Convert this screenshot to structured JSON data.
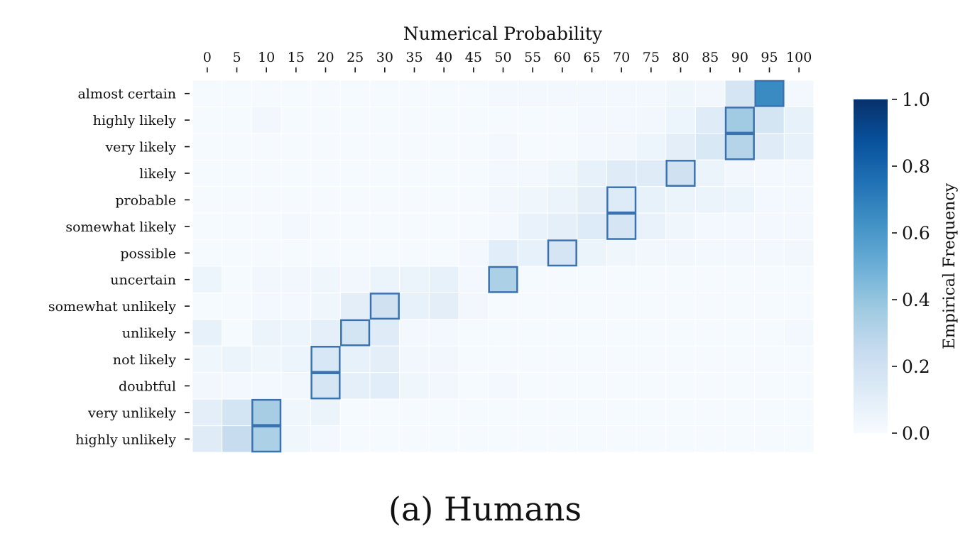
{
  "caption": "(a) Humans",
  "chart_data": {
    "type": "heatmap",
    "title": "",
    "xlabel": "Numerical Probability",
    "x_position": "top",
    "ylabel": "",
    "x": [
      "0",
      "5",
      "10",
      "15",
      "20",
      "25",
      "30",
      "35",
      "40",
      "45",
      "50",
      "55",
      "60",
      "65",
      "70",
      "75",
      "80",
      "85",
      "90",
      "95",
      "100"
    ],
    "y": [
      "almost certain",
      "highly likely",
      "very likely",
      "likely",
      "probable",
      "somewhat likely",
      "possible",
      "uncertain",
      "somewhat unlikely",
      "unlikely",
      "not likely",
      "doubtful",
      "very unlikely",
      "highly unlikely"
    ],
    "values": [
      [
        0.01,
        0.01,
        0.01,
        0.01,
        0.01,
        0.01,
        0.01,
        0.01,
        0.01,
        0.01,
        0.02,
        0.02,
        0.02,
        0.02,
        0.02,
        0.02,
        0.04,
        0.03,
        0.17,
        0.65,
        0.02
      ],
      [
        0.01,
        0.01,
        0.03,
        0.01,
        0.01,
        0.01,
        0.01,
        0.01,
        0.01,
        0.01,
        0.01,
        0.01,
        0.01,
        0.02,
        0.02,
        0.03,
        0.05,
        0.12,
        0.37,
        0.18,
        0.08
      ],
      [
        0.01,
        0.01,
        0.01,
        0.01,
        0.01,
        0.01,
        0.01,
        0.01,
        0.01,
        0.01,
        0.02,
        0.01,
        0.01,
        0.02,
        0.03,
        0.05,
        0.1,
        0.15,
        0.3,
        0.12,
        0.08
      ],
      [
        0.01,
        0.01,
        0.01,
        0.01,
        0.01,
        0.01,
        0.01,
        0.01,
        0.01,
        0.01,
        0.02,
        0.02,
        0.04,
        0.08,
        0.12,
        0.12,
        0.2,
        0.06,
        0.03,
        0.02,
        0.02
      ],
      [
        0.01,
        0.01,
        0.01,
        0.01,
        0.01,
        0.01,
        0.01,
        0.01,
        0.01,
        0.01,
        0.03,
        0.04,
        0.06,
        0.1,
        0.13,
        0.08,
        0.06,
        0.06,
        0.05,
        0.02,
        0.02
      ],
      [
        0.01,
        0.01,
        0.01,
        0.02,
        0.01,
        0.01,
        0.01,
        0.01,
        0.01,
        0.01,
        0.02,
        0.07,
        0.09,
        0.13,
        0.17,
        0.07,
        0.04,
        0.02,
        0.02,
        0.02,
        0.02
      ],
      [
        0.01,
        0.01,
        0.01,
        0.01,
        0.01,
        0.01,
        0.01,
        0.01,
        0.01,
        0.02,
        0.11,
        0.08,
        0.17,
        0.06,
        0.04,
        0.03,
        0.03,
        0.02,
        0.02,
        0.02,
        0.03
      ],
      [
        0.05,
        0.01,
        0.03,
        0.03,
        0.04,
        0.03,
        0.06,
        0.06,
        0.08,
        0.02,
        0.33,
        0.01,
        0.01,
        0.01,
        0.01,
        0.01,
        0.01,
        0.01,
        0.01,
        0.01,
        0.01
      ],
      [
        0.01,
        0.01,
        0.02,
        0.02,
        0.04,
        0.1,
        0.2,
        0.08,
        0.1,
        0.03,
        0.01,
        0.01,
        0.01,
        0.01,
        0.01,
        0.01,
        0.01,
        0.01,
        0.01,
        0.01,
        0.01
      ],
      [
        0.08,
        0.01,
        0.06,
        0.05,
        0.09,
        0.18,
        0.12,
        0.02,
        0.02,
        0.01,
        0.01,
        0.01,
        0.01,
        0.01,
        0.01,
        0.01,
        0.01,
        0.01,
        0.01,
        0.01,
        0.02
      ],
      [
        0.04,
        0.06,
        0.04,
        0.05,
        0.16,
        0.08,
        0.1,
        0.03,
        0.03,
        0.01,
        0.01,
        0.01,
        0.01,
        0.01,
        0.01,
        0.01,
        0.01,
        0.01,
        0.01,
        0.01,
        0.01
      ],
      [
        0.03,
        0.02,
        0.02,
        0.03,
        0.17,
        0.09,
        0.11,
        0.04,
        0.03,
        0.01,
        0.02,
        0.01,
        0.01,
        0.01,
        0.01,
        0.01,
        0.01,
        0.01,
        0.01,
        0.01,
        0.01
      ],
      [
        0.1,
        0.18,
        0.35,
        0.04,
        0.06,
        0.01,
        0.01,
        0.01,
        0.01,
        0.01,
        0.01,
        0.01,
        0.01,
        0.01,
        0.01,
        0.01,
        0.01,
        0.01,
        0.01,
        0.01,
        0.01
      ],
      [
        0.12,
        0.24,
        0.33,
        0.04,
        0.02,
        0.01,
        0.01,
        0.01,
        0.01,
        0.01,
        0.01,
        0.01,
        0.01,
        0.01,
        0.01,
        0.01,
        0.01,
        0.01,
        0.01,
        0.01,
        0.01
      ]
    ],
    "highlighted_mode": [
      19,
      18,
      18,
      16,
      14,
      14,
      12,
      10,
      6,
      5,
      4,
      4,
      2,
      2
    ],
    "colorbar": {
      "label": "Empirical Frequency",
      "ticks": [
        "0.0",
        "0.2",
        "0.4",
        "0.6",
        "0.8",
        "1.0"
      ],
      "vmin": 0,
      "vmax": 1,
      "colors": [
        "#f7fbff",
        "#deebf7",
        "#c6dbef",
        "#9ecae1",
        "#6baed6",
        "#4292c6",
        "#2171b5",
        "#08519c",
        "#08306b"
      ]
    },
    "highlight_color": "#3a72b0",
    "grid": false
  }
}
